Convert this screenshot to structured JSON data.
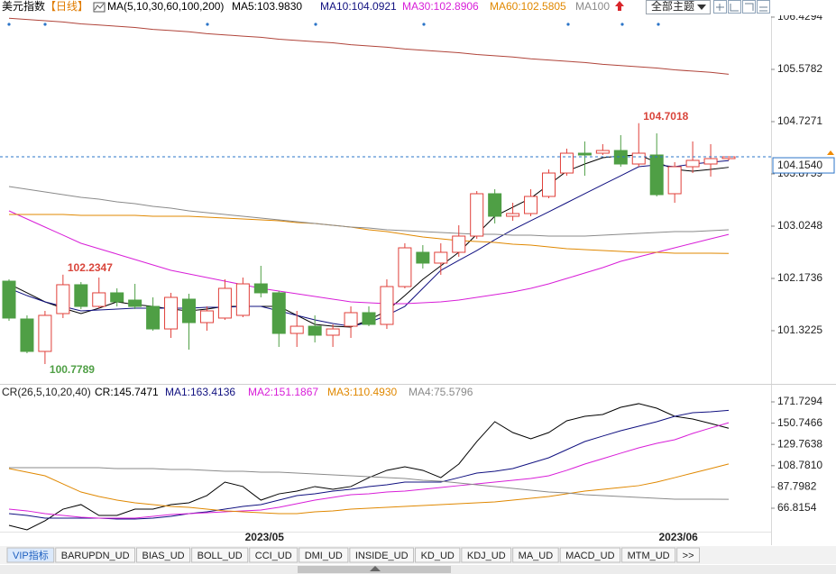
{
  "header": {
    "title": "美元指数",
    "period": "【日线】",
    "indicator": "MA(5,10,30,60,100,200)",
    "theme_select": "全部主题"
  },
  "chart_data": [
    {
      "type": "candlestick",
      "categories": [
        null,
        null,
        null,
        null,
        null,
        null,
        null,
        null,
        null,
        null,
        null,
        null,
        null,
        null,
        "2023/05",
        null,
        null,
        null,
        null,
        null,
        null,
        null,
        null,
        null,
        null,
        null,
        null,
        null,
        null,
        null,
        null,
        null,
        null,
        null,
        null,
        null,
        null,
        "2023/06",
        null,
        null,
        null
      ],
      "up_color": "#e0403a",
      "down_color": "#4f9f45",
      "ohlc": [
        {
          "open": 102.129,
          "high": 102.159,
          "low": 101.484,
          "close": 101.528
        },
        {
          "open": 101.513,
          "high": 101.572,
          "low": 100.955,
          "close": 100.985
        },
        {
          "open": 100.985,
          "high": 101.645,
          "low": 100.7789,
          "close": 101.572
        },
        {
          "open": 101.601,
          "high": 102.2347,
          "low": 101.528,
          "close": 102.071
        },
        {
          "open": 102.071,
          "high": 102.115,
          "low": 101.674,
          "close": 101.718
        },
        {
          "open": 101.718,
          "high": 102.188,
          "low": 101.689,
          "close": 101.939
        },
        {
          "open": 101.939,
          "high": 102.012,
          "low": 101.718,
          "close": 101.792
        },
        {
          "open": 101.821,
          "high": 102.085,
          "low": 101.674,
          "close": 101.718
        },
        {
          "open": 101.718,
          "high": 101.865,
          "low": 101.322,
          "close": 101.351
        },
        {
          "open": 101.351,
          "high": 101.939,
          "low": 101.205,
          "close": 101.865
        },
        {
          "open": 101.836,
          "high": 101.924,
          "low": 101.014,
          "close": 101.454
        },
        {
          "open": 101.454,
          "high": 101.718,
          "low": 101.322,
          "close": 101.645
        },
        {
          "open": 101.528,
          "high": 102.159,
          "low": 101.498,
          "close": 102.012
        },
        {
          "open": 101.572,
          "high": 102.188,
          "low": 101.542,
          "close": 102.085
        },
        {
          "open": 102.085,
          "high": 102.379,
          "low": 101.865,
          "close": 101.939
        },
        {
          "open": 101.939,
          "high": 101.968,
          "low": 101.058,
          "close": 101.278
        },
        {
          "open": 101.278,
          "high": 101.645,
          "low": 101.058,
          "close": 101.395
        },
        {
          "open": 101.395,
          "high": 101.572,
          "low": 101.131,
          "close": 101.249
        },
        {
          "open": 101.249,
          "high": 101.425,
          "low": 101.058,
          "close": 101.351
        },
        {
          "open": 101.395,
          "high": 101.718,
          "low": 101.205,
          "close": 101.616
        },
        {
          "open": 101.616,
          "high": 101.718,
          "low": 101.395,
          "close": 101.425
        },
        {
          "open": 101.425,
          "high": 102.159,
          "low": 101.351,
          "close": 102.041
        },
        {
          "open": 102.041,
          "high": 102.746,
          "low": 102.012,
          "close": 102.672
        },
        {
          "open": 102.599,
          "high": 102.716,
          "low": 102.335,
          "close": 102.423
        },
        {
          "open": 102.423,
          "high": 102.746,
          "low": 102.232,
          "close": 102.599
        },
        {
          "open": 102.599,
          "high": 103.039,
          "low": 102.526,
          "close": 102.863
        },
        {
          "open": 102.863,
          "high": 103.597,
          "low": 102.819,
          "close": 103.553
        },
        {
          "open": 103.553,
          "high": 103.626,
          "low": 103.069,
          "close": 103.186
        },
        {
          "open": 103.186,
          "high": 103.406,
          "low": 103.113,
          "close": 103.23
        },
        {
          "open": 103.23,
          "high": 103.626,
          "low": 103.186,
          "close": 103.509
        },
        {
          "open": 103.509,
          "high": 103.949,
          "low": 103.48,
          "close": 103.89
        },
        {
          "open": 103.89,
          "high": 104.287,
          "low": 103.846,
          "close": 104.213
        },
        {
          "open": 104.213,
          "high": 104.404,
          "low": 103.846,
          "close": 104.184
        },
        {
          "open": 104.213,
          "high": 104.36,
          "low": 104.184,
          "close": 104.257
        },
        {
          "open": 104.257,
          "high": 104.507,
          "low": 103.993,
          "close": 104.037
        },
        {
          "open": 104.037,
          "high": 104.7018,
          "low": 103.993,
          "close": 104.213
        },
        {
          "open": 104.184,
          "high": 104.536,
          "low": 103.509,
          "close": 103.538
        },
        {
          "open": 103.553,
          "high": 104.067,
          "low": 103.406,
          "close": 103.993
        },
        {
          "open": 103.993,
          "high": 104.404,
          "low": 103.89,
          "close": 104.096
        },
        {
          "open": 104.037,
          "high": 104.36,
          "low": 103.832,
          "close": 104.125
        },
        {
          "open": 104.125,
          "high": 104.16,
          "low": 104.096,
          "close": 104.154
        }
      ],
      "series": [
        {
          "name": "MA5:103.9830",
          "color": "#000000",
          "values": [
            102.085,
            101.939,
            101.792,
            101.689,
            101.601,
            101.689,
            101.792,
            101.748,
            101.718,
            101.674,
            101.645,
            101.674,
            101.718,
            101.718,
            101.718,
            101.718,
            101.572,
            101.425,
            101.395,
            101.381,
            101.498,
            101.645,
            101.894,
            102.159,
            102.379,
            102.599,
            102.892,
            103.186,
            103.333,
            103.48,
            103.7,
            103.92,
            104.037,
            104.14,
            104.169,
            104.184,
            104.067,
            103.949,
            103.92,
            103.949,
            103.983
          ]
        },
        {
          "name": "MA10:104.0921",
          "color": "#101080",
          "values": [
            102.012,
            101.894,
            101.792,
            101.718,
            101.645,
            101.66,
            101.674,
            101.689,
            101.689,
            101.689,
            101.689,
            101.704,
            101.704,
            101.718,
            101.718,
            101.645,
            101.572,
            101.498,
            101.44,
            101.395,
            101.454,
            101.572,
            101.718,
            102.012,
            102.305,
            102.467,
            102.628,
            102.804,
            102.966,
            103.113,
            103.259,
            103.406,
            103.553,
            103.7,
            103.846,
            103.993,
            104.023,
            103.993,
            104.037,
            104.067,
            104.0921
          ]
        },
        {
          "name": "MA30:102.8906",
          "color": "#d81ed8",
          "values": [
            103.274,
            103.142,
            103.01,
            102.878,
            102.746,
            102.658,
            102.57,
            102.482,
            102.393,
            102.305,
            102.247,
            102.188,
            102.129,
            102.071,
            102.012,
            101.968,
            101.924,
            101.88,
            101.836,
            101.792,
            101.777,
            101.762,
            101.762,
            101.777,
            101.792,
            101.821,
            101.865,
            101.909,
            101.953,
            102.012,
            102.085,
            102.173,
            102.261,
            102.349,
            102.452,
            102.526,
            102.599,
            102.672,
            102.746,
            102.819,
            102.8906
          ]
        },
        {
          "name": "MA60:102.5805",
          "color": "#e08800",
          "values": [
            103.215,
            103.215,
            103.215,
            103.215,
            103.201,
            103.201,
            103.201,
            103.201,
            103.186,
            103.186,
            103.186,
            103.171,
            103.157,
            103.142,
            103.127,
            103.113,
            103.083,
            103.069,
            103.039,
            103.01,
            102.966,
            102.936,
            102.892,
            102.848,
            102.819,
            102.79,
            102.775,
            102.76,
            102.731,
            102.716,
            102.687,
            102.658,
            102.643,
            102.628,
            102.614,
            102.599,
            102.599,
            102.584,
            102.584,
            102.584,
            102.5805
          ]
        },
        {
          "name": "MA100",
          "color": "#8a8a8a",
          "values": [
            103.67,
            103.626,
            103.582,
            103.538,
            103.494,
            103.465,
            103.421,
            103.391,
            103.347,
            103.318,
            103.274,
            103.245,
            103.215,
            103.186,
            103.157,
            103.127,
            103.098,
            103.069,
            103.039,
            103.01,
            102.995,
            102.966,
            102.951,
            102.936,
            102.922,
            102.907,
            102.892,
            102.892,
            102.878,
            102.878,
            102.863,
            102.863,
            102.863,
            102.878,
            102.892,
            102.907,
            102.922,
            102.936,
            102.936,
            102.951,
            102.966
          ]
        },
        {
          "color": "#b0443a",
          "values": [
            106.41,
            106.39,
            106.37,
            106.35,
            106.32,
            106.3,
            106.28,
            106.26,
            106.23,
            106.21,
            106.19,
            106.16,
            106.14,
            106.12,
            106.1,
            106.07,
            106.05,
            106.03,
            106.01,
            105.98,
            105.96,
            105.94,
            105.91,
            105.89,
            105.87,
            105.85,
            105.82,
            105.8,
            105.78,
            105.75,
            105.73,
            105.71,
            105.69,
            105.66,
            105.64,
            105.62,
            105.6,
            105.57,
            105.55,
            105.53,
            105.5
          ]
        }
      ],
      "ylim": [
        100.471,
        106.708
      ],
      "yticks": [
        106.4294,
        105.5782,
        104.7271,
        103.8759,
        103.0248,
        102.1736,
        101.3225
      ],
      "last_price": {
        "value": 104.154,
        "label": "104.1540"
      },
      "labels": [
        {
          "candle": 35,
          "price": "high",
          "color": "#d9453b"
        },
        {
          "candle": 3,
          "price": "high",
          "color": "#d9453b"
        },
        {
          "candle": 2,
          "price": "low",
          "color": "#4f9f45"
        }
      ]
    },
    {
      "type": "line",
      "title": "CR(26,5,10,20,40)",
      "series": [
        {
          "name": "CR:145.7471",
          "color": "#000000",
          "values": [
            49.9,
            45.5,
            54.4,
            65.9,
            70.4,
            59.7,
            59.7,
            65.9,
            65.9,
            70.4,
            72.2,
            79.3,
            92.6,
            88.2,
            74.8,
            81.0,
            83.7,
            88.2,
            85.5,
            88.2,
            97.0,
            104.2,
            107.7,
            104.2,
            97.0,
            110.4,
            132.6,
            152.2,
            141.5,
            135.3,
            141.5,
            153.1,
            157.5,
            159.3,
            166.4,
            170.0,
            165.5,
            157.5,
            154.8,
            150.4,
            145.7471
          ]
        },
        {
          "name": "MA1:163.4136",
          "color": "#101080",
          "values": [
            61.5,
            59.7,
            57.0,
            57.0,
            57.0,
            57.0,
            56.2,
            56.2,
            57.0,
            58.8,
            61.5,
            63.3,
            65.9,
            68.6,
            70.4,
            74.8,
            79.3,
            81.0,
            83.7,
            85.5,
            88.2,
            89.9,
            92.6,
            92.6,
            92.6,
            97.0,
            101.5,
            103.3,
            105.9,
            111.3,
            116.6,
            124.6,
            132.6,
            138.0,
            143.3,
            147.7,
            152.2,
            157.5,
            161.1,
            162.0,
            163.4136
          ]
        },
        {
          "name": "MA2:151.1867",
          "color": "#d81ed8",
          "values": [
            65.9,
            64.2,
            61.5,
            59.7,
            57.9,
            57.0,
            57.0,
            57.0,
            58.8,
            60.6,
            61.5,
            62.4,
            63.3,
            64.2,
            65.0,
            67.7,
            71.3,
            74.8,
            77.5,
            80.2,
            81.0,
            82.8,
            83.7,
            85.5,
            87.3,
            89.1,
            90.8,
            92.6,
            94.4,
            96.2,
            98.8,
            104.2,
            110.4,
            115.7,
            121.1,
            126.4,
            130.8,
            134.4,
            140.6,
            146.0,
            151.1867
          ]
        },
        {
          "name": "MA3:110.4930",
          "color": "#e08800",
          "values": [
            105.9,
            102.4,
            98.8,
            90.8,
            82.8,
            78.4,
            74.8,
            72.2,
            70.4,
            68.6,
            67.7,
            65.9,
            64.2,
            63.3,
            62.4,
            61.5,
            61.5,
            63.3,
            64.2,
            65.9,
            66.8,
            67.7,
            68.6,
            69.5,
            70.4,
            71.3,
            72.2,
            73.0,
            74.8,
            76.6,
            78.4,
            81.0,
            83.7,
            85.5,
            87.3,
            89.1,
            92.6,
            97.0,
            101.5,
            105.9,
            110.493
          ]
        },
        {
          "name": "MA4:75.5796",
          "color": "#8a8a8a",
          "values": [
            106.8,
            106.8,
            106.8,
            106.8,
            106.8,
            106.8,
            105.9,
            105.9,
            105.9,
            105.1,
            105.1,
            104.2,
            103.3,
            103.3,
            102.4,
            102.4,
            101.5,
            100.6,
            99.7,
            98.8,
            97.9,
            97.0,
            96.2,
            94.4,
            93.5,
            91.7,
            89.9,
            88.2,
            86.4,
            84.6,
            82.8,
            81.9,
            80.2,
            79.3,
            78.4,
            77.5,
            76.6,
            75.7,
            75.7,
            75.7,
            75.5796
          ]
        }
      ],
      "ylim": [
        43.7,
        187.74
      ],
      "yticks": [
        171.7294,
        150.7466,
        129.7638,
        {
          "value": 108.781,
          "label": "108.7810"
        },
        87.7982,
        66.8154
      ]
    }
  ],
  "tabs": [
    "VIP指标",
    "BARUPDN_UD",
    "BIAS_UD",
    "BOLL_UD",
    "CCI_UD",
    "DMI_UD",
    "INSIDE_UD",
    "KD_UD",
    "KDJ_UD",
    "MA_UD",
    "MACD_UD",
    "MTM_UD",
    ">>"
  ]
}
